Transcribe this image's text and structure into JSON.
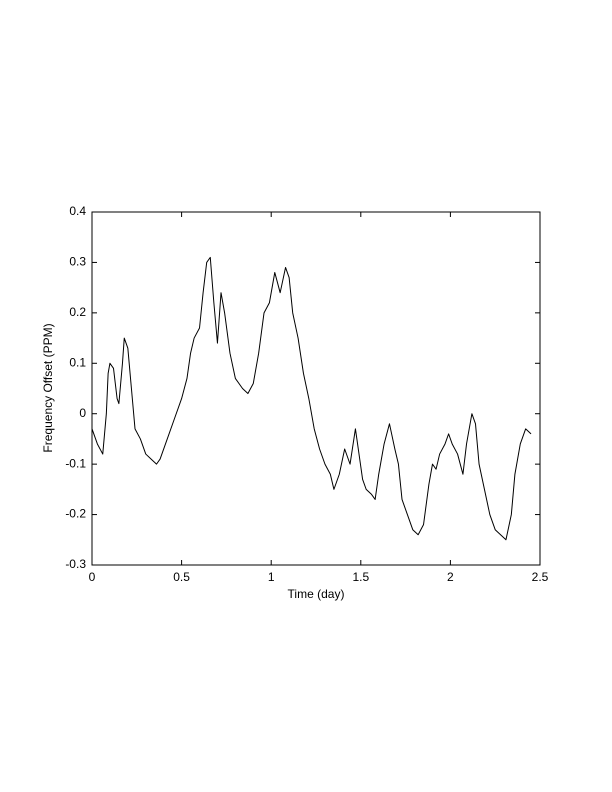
{
  "chart_data": {
    "type": "line",
    "x_label": "Time (day)",
    "y_label": "Frequency Offset (PPM)",
    "xlim": [
      0,
      2.5
    ],
    "xticks": [
      0,
      0.5,
      1,
      1.5,
      2,
      2.5
    ],
    "ylim": [
      -0.3,
      0.4
    ],
    "yticks": [
      -0.3,
      -0.2,
      -0.1,
      0,
      0.1,
      0.2,
      0.3,
      0.4
    ],
    "x": [
      0,
      0.03,
      0.06,
      0.08,
      0.09,
      0.1,
      0.12,
      0.14,
      0.15,
      0.17,
      0.18,
      0.2,
      0.22,
      0.24,
      0.27,
      0.3,
      0.33,
      0.36,
      0.38,
      0.42,
      0.46,
      0.5,
      0.53,
      0.55,
      0.57,
      0.6,
      0.62,
      0.64,
      0.66,
      0.68,
      0.7,
      0.72,
      0.74,
      0.77,
      0.8,
      0.84,
      0.87,
      0.9,
      0.93,
      0.96,
      0.99,
      1.02,
      1.05,
      1.08,
      1.1,
      1.12,
      1.15,
      1.18,
      1.21,
      1.24,
      1.27,
      1.3,
      1.33,
      1.35,
      1.38,
      1.41,
      1.44,
      1.47,
      1.49,
      1.51,
      1.53,
      1.56,
      1.58,
      1.6,
      1.63,
      1.66,
      1.69,
      1.71,
      1.73,
      1.76,
      1.79,
      1.82,
      1.85,
      1.88,
      1.9,
      1.92,
      1.94,
      1.97,
      1.99,
      2.01,
      2.04,
      2.07,
      2.09,
      2.12,
      2.14,
      2.16,
      2.19,
      2.22,
      2.25,
      2.28,
      2.31,
      2.34,
      2.36,
      2.39,
      2.42,
      2.45
    ],
    "series": [
      {
        "color": "#000000",
        "values": [
          -0.03,
          -0.06,
          -0.08,
          0.0,
          0.08,
          0.1,
          0.09,
          0.03,
          0.02,
          0.1,
          0.15,
          0.13,
          0.05,
          -0.03,
          -0.05,
          -0.08,
          -0.09,
          -0.1,
          -0.09,
          -0.05,
          -0.01,
          0.03,
          0.07,
          0.12,
          0.15,
          0.17,
          0.24,
          0.3,
          0.31,
          0.22,
          0.14,
          0.24,
          0.2,
          0.12,
          0.07,
          0.05,
          0.04,
          0.06,
          0.12,
          0.2,
          0.22,
          0.28,
          0.24,
          0.29,
          0.27,
          0.2,
          0.15,
          0.08,
          0.03,
          -0.03,
          -0.07,
          -0.1,
          -0.12,
          -0.15,
          -0.12,
          -0.07,
          -0.1,
          -0.03,
          -0.08,
          -0.13,
          -0.15,
          -0.16,
          -0.17,
          -0.12,
          -0.06,
          -0.02,
          -0.07,
          -0.1,
          -0.17,
          -0.2,
          -0.23,
          -0.24,
          -0.22,
          -0.14,
          -0.1,
          -0.11,
          -0.08,
          -0.06,
          -0.04,
          -0.06,
          -0.08,
          -0.12,
          -0.06,
          0.0,
          -0.02,
          -0.1,
          -0.15,
          -0.2,
          -0.23,
          -0.24,
          -0.25,
          -0.2,
          -0.12,
          -0.06,
          -0.03,
          -0.04
        ]
      }
    ]
  }
}
